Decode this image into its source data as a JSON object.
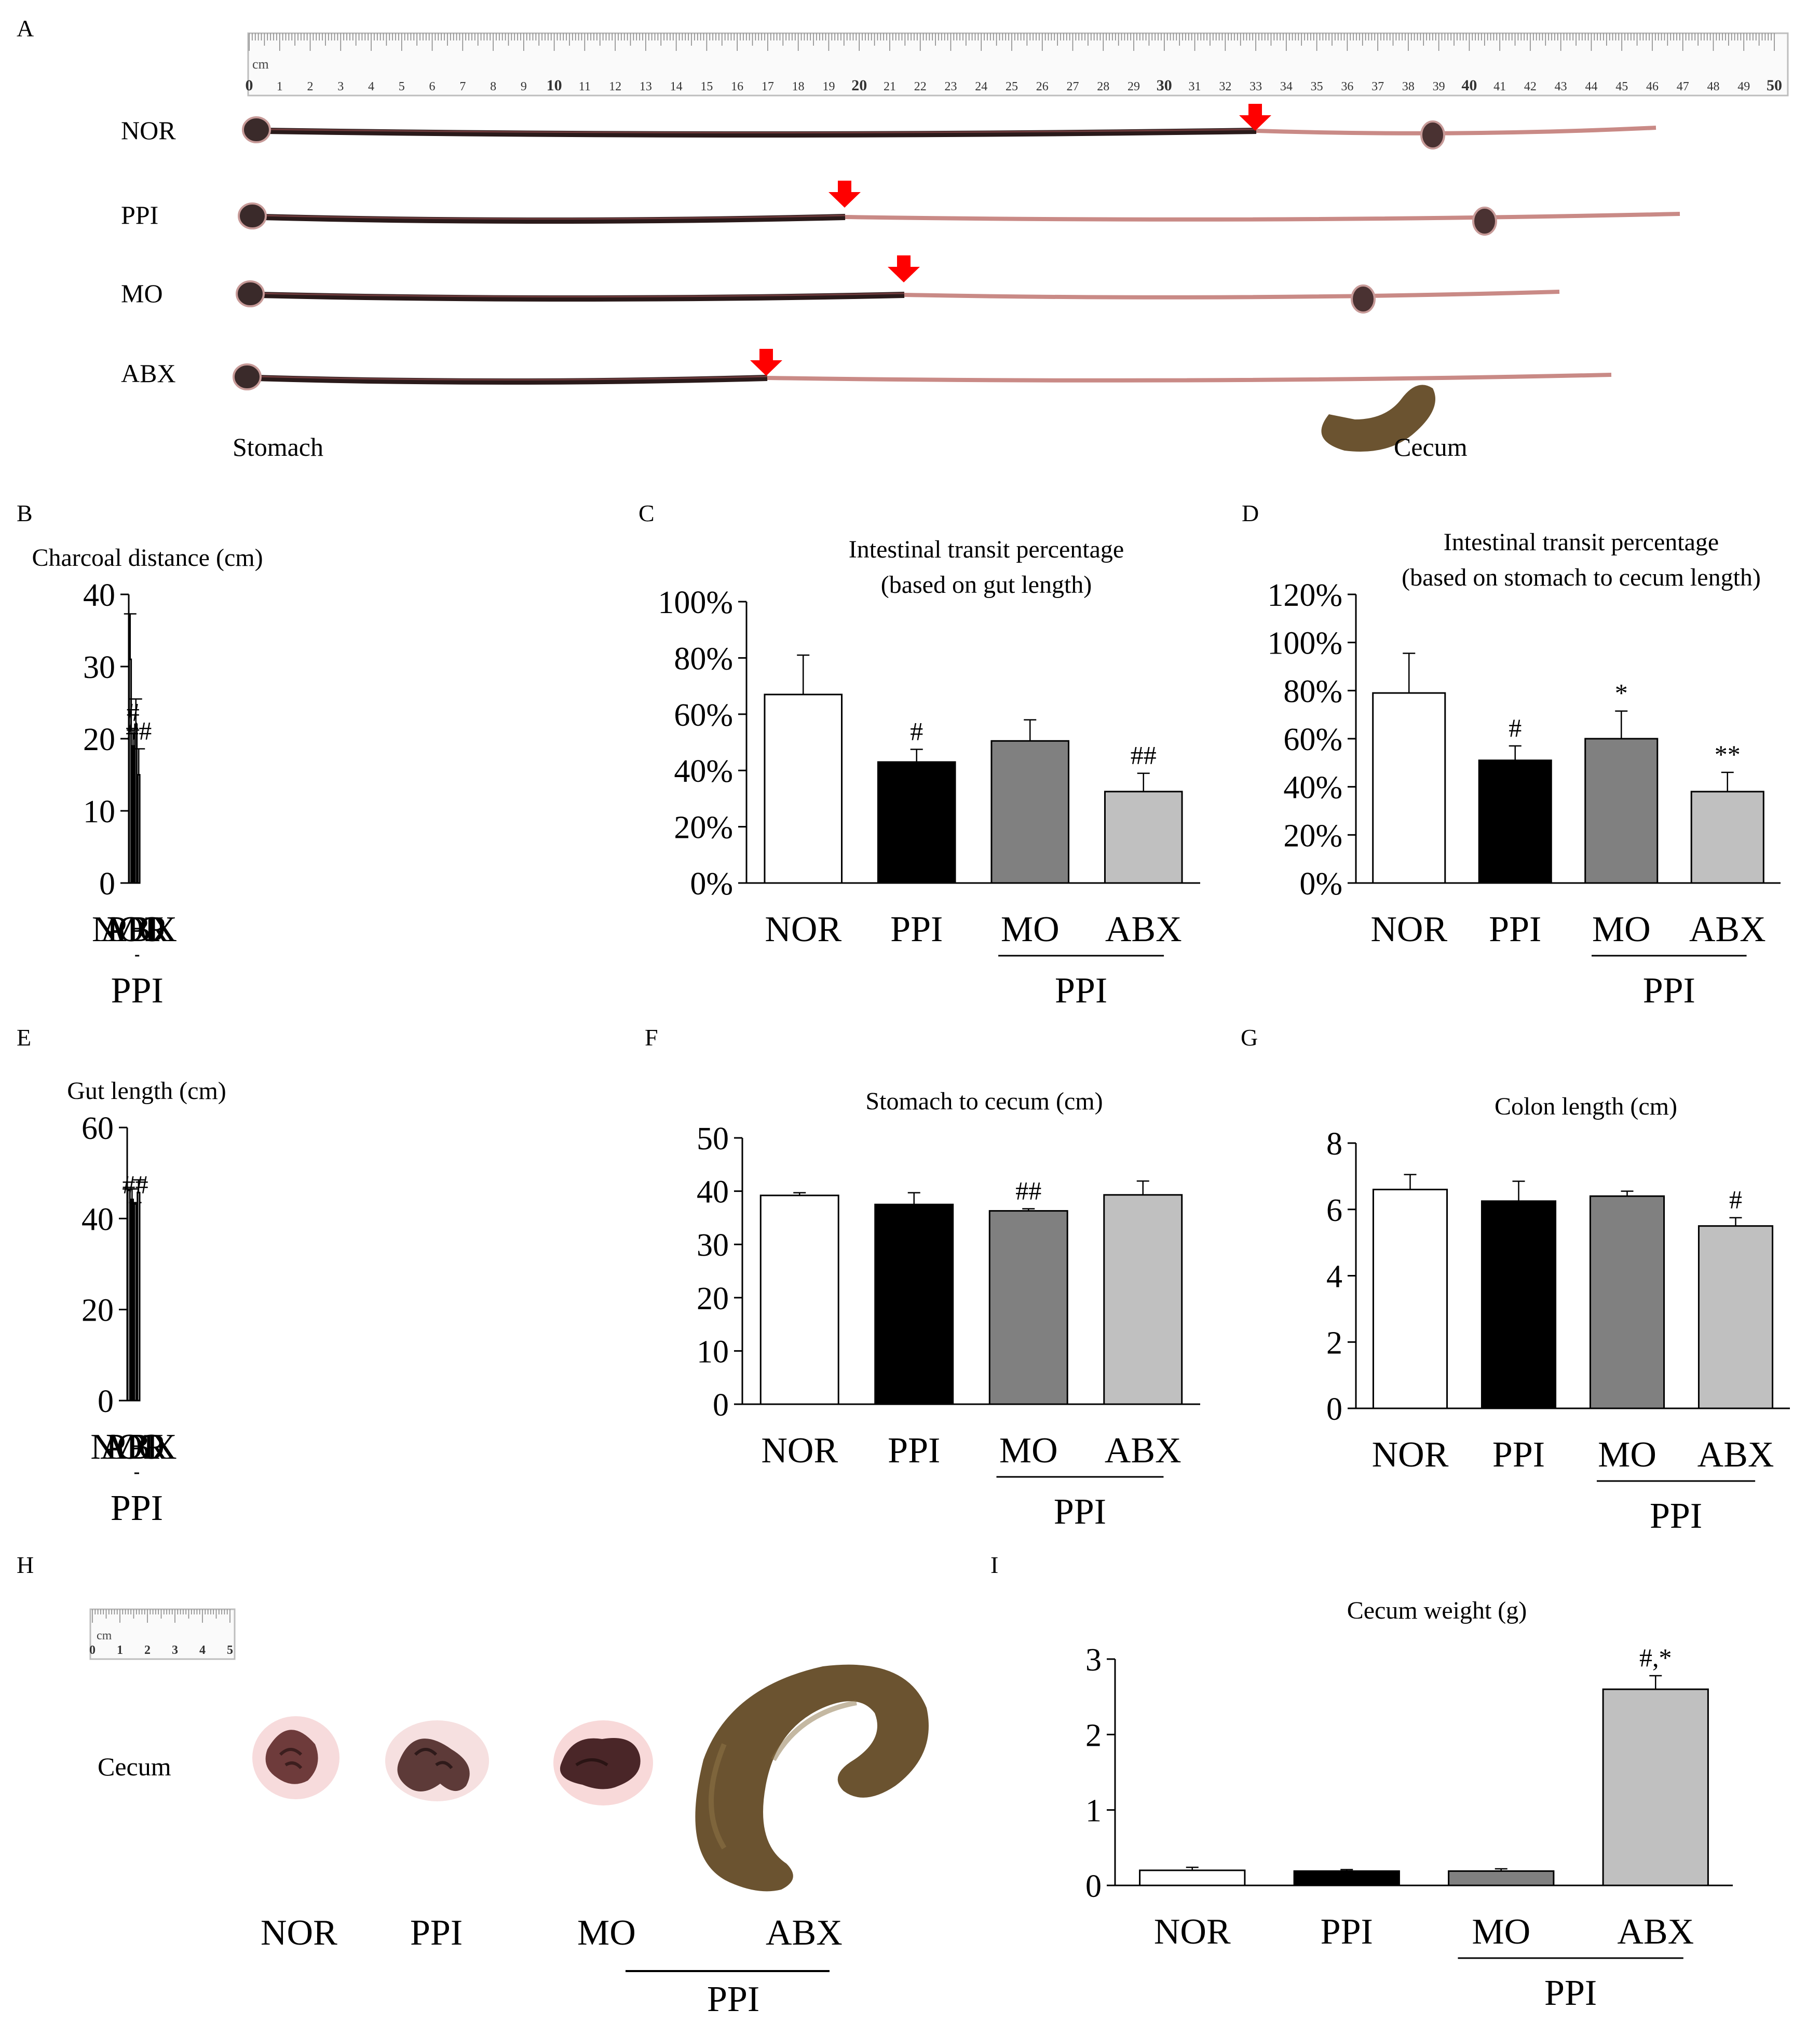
{
  "panel_letters": [
    "A",
    "B",
    "C",
    "D",
    "E",
    "F",
    "G",
    "H",
    "I"
  ],
  "panel_a": {
    "ruler_unit": "cm",
    "ruler_ticks": [
      "0",
      "1",
      "2",
      "3",
      "4",
      "5",
      "6",
      "7",
      "8",
      "9",
      "10",
      "11",
      "12",
      "13",
      "14",
      "15",
      "16",
      "17",
      "18",
      "19",
      "20",
      "21",
      "22",
      "23",
      "24",
      "25",
      "26",
      "27",
      "28",
      "29",
      "30",
      "31",
      "32",
      "33",
      "34",
      "35",
      "36",
      "37",
      "38",
      "39",
      "40",
      "41",
      "42",
      "43",
      "44",
      "45",
      "46",
      "47",
      "48",
      "49",
      "50"
    ],
    "rows": [
      "NOR",
      "PPI",
      "MO",
      "ABX"
    ],
    "stomach_label": "Stomach",
    "cecum_label": "Cecum"
  },
  "panel_h": {
    "ruler_unit": "cm",
    "ruler_ticks": [
      "0",
      "1",
      "2",
      "3",
      "4",
      "5"
    ],
    "row_label": "Cecum",
    "group_labels": [
      "NOR",
      "PPI",
      "MO",
      "ABX"
    ],
    "bracket_label": "PPI"
  },
  "colors": {
    "NOR": "#ffffff",
    "PPI": "#000000",
    "MO": "#808080",
    "ABX": "#c0c0c0",
    "arrow": "#ff0000",
    "gut_dark": "#2a1a1a",
    "gut_pink": "#c98a86",
    "cecum_brown": "#6b5330"
  },
  "chart_data": [
    {
      "panel": "B",
      "type": "bar",
      "title": "Charcoal distance (cm)",
      "categories": [
        "NOR",
        "PPI",
        "MO",
        "ABX"
      ],
      "values": [
        31,
        19,
        22,
        15
      ],
      "errors": [
        6.3,
        2.2,
        3.5,
        3.6
      ],
      "annotations": [
        "",
        "#",
        "",
        "##"
      ],
      "ylim": [
        0,
        40
      ],
      "yticks": [
        "0",
        "10",
        "20",
        "30",
        "40"
      ],
      "bracket_label": "PPI"
    },
    {
      "panel": "C",
      "type": "bar",
      "title": "Intestinal transit percentage",
      "subtitle": "(based on gut length)",
      "categories": [
        "NOR",
        "PPI",
        "MO",
        "ABX"
      ],
      "values": [
        67,
        43,
        50.5,
        32.5
      ],
      "errors": [
        14,
        4.5,
        7.5,
        6.5
      ],
      "annotations": [
        "",
        "#",
        "",
        "##"
      ],
      "ylim": [
        0,
        100
      ],
      "yticks": [
        "0%",
        "20%",
        "40%",
        "60%",
        "80%",
        "100%"
      ],
      "bracket_label": "PPI"
    },
    {
      "panel": "D",
      "type": "bar",
      "title": "Intestinal transit percentage",
      "subtitle": "(based on stomach to cecum length)",
      "categories": [
        "NOR",
        "PPI",
        "MO",
        "ABX"
      ],
      "values": [
        79,
        51,
        60,
        38
      ],
      "errors": [
        16.5,
        6,
        11.5,
        8
      ],
      "annotations": [
        "",
        "#",
        "*",
        "**"
      ],
      "ylim": [
        0,
        120
      ],
      "yticks": [
        "0%",
        "20%",
        "40%",
        "60%",
        "80%",
        "100%",
        "120%"
      ],
      "bracket_label": "PPI"
    },
    {
      "panel": "E",
      "type": "bar",
      "title": "Gut length (cm)",
      "categories": [
        "NOR",
        "PPI",
        "MO",
        "ABX"
      ],
      "values": [
        46.2,
        44.2,
        43.2,
        45.7
      ],
      "errors": [
        0.3,
        2.3,
        0.3,
        2.8
      ],
      "annotations": [
        "",
        "",
        "##",
        ""
      ],
      "ylim": [
        0,
        60
      ],
      "yticks": [
        "0",
        "20",
        "40",
        "60"
      ],
      "bracket_label": "PPI"
    },
    {
      "panel": "F",
      "type": "bar",
      "title": "Stomach to cecum (cm)",
      "categories": [
        "NOR",
        "PPI",
        "MO",
        "ABX"
      ],
      "values": [
        39.2,
        37.5,
        36.3,
        39.3
      ],
      "errors": [
        0.5,
        2.2,
        0.4,
        2.6
      ],
      "annotations": [
        "",
        "",
        "##",
        ""
      ],
      "ylim": [
        0,
        50
      ],
      "yticks": [
        "0",
        "10",
        "20",
        "30",
        "40",
        "50"
      ],
      "bracket_label": "PPI"
    },
    {
      "panel": "G",
      "type": "bar",
      "title": "Colon length (cm)",
      "categories": [
        "NOR",
        "PPI",
        "MO",
        "ABX"
      ],
      "values": [
        6.6,
        6.25,
        6.4,
        5.5
      ],
      "errors": [
        0.45,
        0.6,
        0.15,
        0.25
      ],
      "annotations": [
        "",
        "",
        "",
        "#"
      ],
      "ylim": [
        0,
        8
      ],
      "yticks": [
        "0",
        "2",
        "4",
        "6",
        "8"
      ],
      "bracket_label": "PPI"
    },
    {
      "panel": "I",
      "type": "bar",
      "title": "Cecum weight (g)",
      "categories": [
        "NOR",
        "PPI",
        "MO",
        "ABX"
      ],
      "values": [
        0.2,
        0.19,
        0.19,
        2.6
      ],
      "errors": [
        0.04,
        0.02,
        0.03,
        0.18
      ],
      "annotations": [
        "",
        "",
        "",
        "#,*"
      ],
      "ylim": [
        0,
        3
      ],
      "yticks": [
        "0",
        "1",
        "2",
        "3"
      ],
      "bracket_label": "PPI"
    }
  ]
}
